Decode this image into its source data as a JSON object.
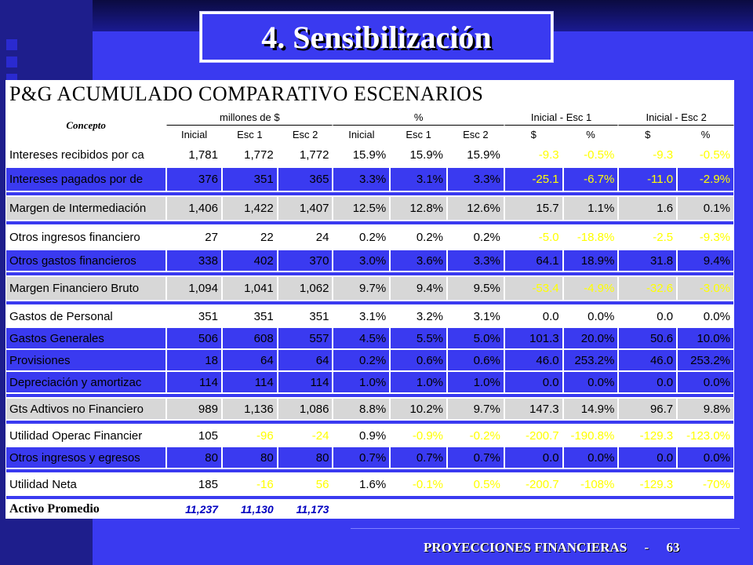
{
  "slide_title": "4. Sensibilización",
  "table_title": "P&G ACUMULADO COMPARATIVO ESCENARIOS",
  "concept_label": "Concepto",
  "groups": {
    "millones": "millones de $",
    "pct": "%",
    "ini_esc1": "Inicial - Esc 1",
    "ini_esc2": "Inicial - Esc 2"
  },
  "sub_headers": [
    "Inicial",
    "Esc 1",
    "Esc 2",
    "Inicial",
    "Esc 1",
    "Esc 2",
    "$",
    "%",
    "$",
    "%"
  ],
  "rows": [
    {
      "label": "Intereses recibidos por ca",
      "values": [
        "1,781",
        "1,772",
        "1,772",
        "15.9%",
        "15.9%",
        "15.9%",
        "-9.3",
        "-0.5%",
        "-9.3",
        "-0.5%"
      ]
    },
    {
      "label": "Intereses pagados por de",
      "values": [
        "376",
        "351",
        "365",
        "3.3%",
        "3.1%",
        "3.3%",
        "-25.1",
        "-6.7%",
        "-11.0",
        "-2.9%"
      ]
    },
    {
      "label": "Margen de Intermediación",
      "values": [
        "1,406",
        "1,422",
        "1,407",
        "12.5%",
        "12.8%",
        "12.6%",
        "15.7",
        "1.1%",
        "1.6",
        "0.1%"
      ]
    },
    {
      "label": "Otros ingresos financiero",
      "values": [
        "27",
        "22",
        "24",
        "0.2%",
        "0.2%",
        "0.2%",
        "-5.0",
        "-18.8%",
        "-2.5",
        "-9.3%"
      ]
    },
    {
      "label": "Otros gastos financieros",
      "values": [
        "338",
        "402",
        "370",
        "3.0%",
        "3.6%",
        "3.3%",
        "64.1",
        "18.9%",
        "31.8",
        "9.4%"
      ]
    },
    {
      "label": "Margen Financiero Bruto",
      "values": [
        "1,094",
        "1,041",
        "1,062",
        "9.7%",
        "9.4%",
        "9.5%",
        "-53.4",
        "-4.9%",
        "-32.6",
        "-3.0%"
      ]
    },
    {
      "label": "Gastos de Personal",
      "values": [
        "351",
        "351",
        "351",
        "3.1%",
        "3.2%",
        "3.1%",
        "0.0",
        "0.0%",
        "0.0",
        "0.0%"
      ]
    },
    {
      "label": "Gastos Generales",
      "values": [
        "506",
        "608",
        "557",
        "4.5%",
        "5.5%",
        "5.0%",
        "101.3",
        "20.0%",
        "50.6",
        "10.0%"
      ]
    },
    {
      "label": "Provisiones",
      "values": [
        "18",
        "64",
        "64",
        "0.2%",
        "0.6%",
        "0.6%",
        "46.0",
        "253.2%",
        "46.0",
        "253.2%"
      ]
    },
    {
      "label": "Depreciación y amortizac",
      "values": [
        "114",
        "114",
        "114",
        "1.0%",
        "1.0%",
        "1.0%",
        "0.0",
        "0.0%",
        "0.0",
        "0.0%"
      ]
    },
    {
      "label": "Gts Adtivos no Financiero",
      "values": [
        "989",
        "1,136",
        "1,086",
        "8.8%",
        "10.2%",
        "9.7%",
        "147.3",
        "14.9%",
        "96.7",
        "9.8%"
      ]
    },
    {
      "label": "Utilidad Operac Financier",
      "values": [
        "105",
        "-96",
        "-24",
        "0.9%",
        "-0.9%",
        "-0.2%",
        "-200.7",
        "-190.8%",
        "-129.3",
        "-123.0%"
      ]
    },
    {
      "label": "Otros ingresos y egresos",
      "values": [
        "80",
        "80",
        "80",
        "0.7%",
        "0.7%",
        "0.7%",
        "0.0",
        "0.0%",
        "0.0",
        "0.0%"
      ]
    },
    {
      "label": "Utilidad Neta",
      "values": [
        "185",
        "-16",
        "56",
        "1.6%",
        "-0.1%",
        "0.5%",
        "-200.7",
        "-108%",
        "-129.3",
        "-70%"
      ]
    }
  ],
  "activo": {
    "label": "Activo Promedio",
    "values": [
      "11,237",
      "11,130",
      "11,173"
    ]
  },
  "footer": {
    "text": "PROYECCIONES FINANCIERAS",
    "sep": "-",
    "page": "63"
  },
  "colors": {
    "background": "#3a3af0",
    "highlight": "#ffff00",
    "gray_row": "#d7d7d7"
  }
}
